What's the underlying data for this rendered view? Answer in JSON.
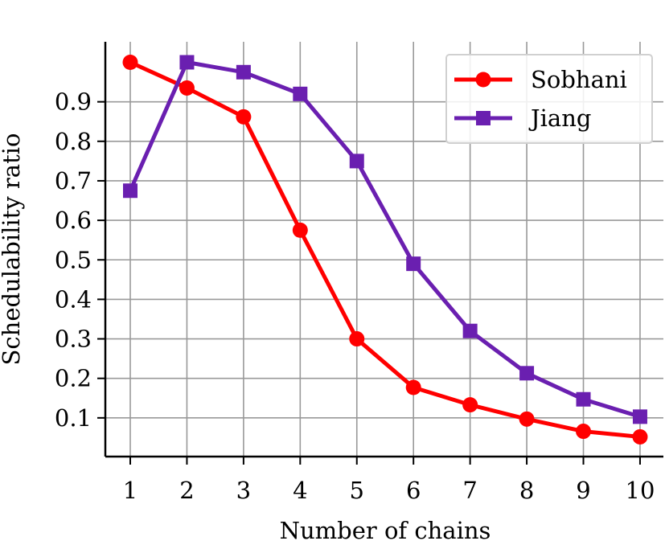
{
  "chart_data": {
    "type": "line",
    "x": [
      1,
      2,
      3,
      4,
      5,
      6,
      7,
      8,
      9,
      10
    ],
    "xlabel": "Number of chains",
    "ylabel": "Schedulability ratio",
    "xticks": [
      "1",
      "2",
      "3",
      "4",
      "5",
      "6",
      "7",
      "8",
      "9",
      "10"
    ],
    "yticks": [
      "0.1",
      "0.2",
      "0.3",
      "0.4",
      "0.5",
      "0.6",
      "0.7",
      "0.8",
      "0.9"
    ],
    "ylim": [
      0.0,
      1.0
    ],
    "grid": true,
    "legend_position": "top-right",
    "series": [
      {
        "name": "Sobhani",
        "color": "#ff0000",
        "marker": "circle",
        "values": [
          1.0,
          0.935,
          0.862,
          0.575,
          0.3,
          0.177,
          0.133,
          0.097,
          0.066,
          0.052
        ]
      },
      {
        "name": "Jiang",
        "color": "#6a1fb0",
        "marker": "square",
        "values": [
          0.675,
          1.0,
          0.975,
          0.92,
          0.75,
          0.49,
          0.32,
          0.213,
          0.147,
          0.103
        ]
      }
    ]
  }
}
